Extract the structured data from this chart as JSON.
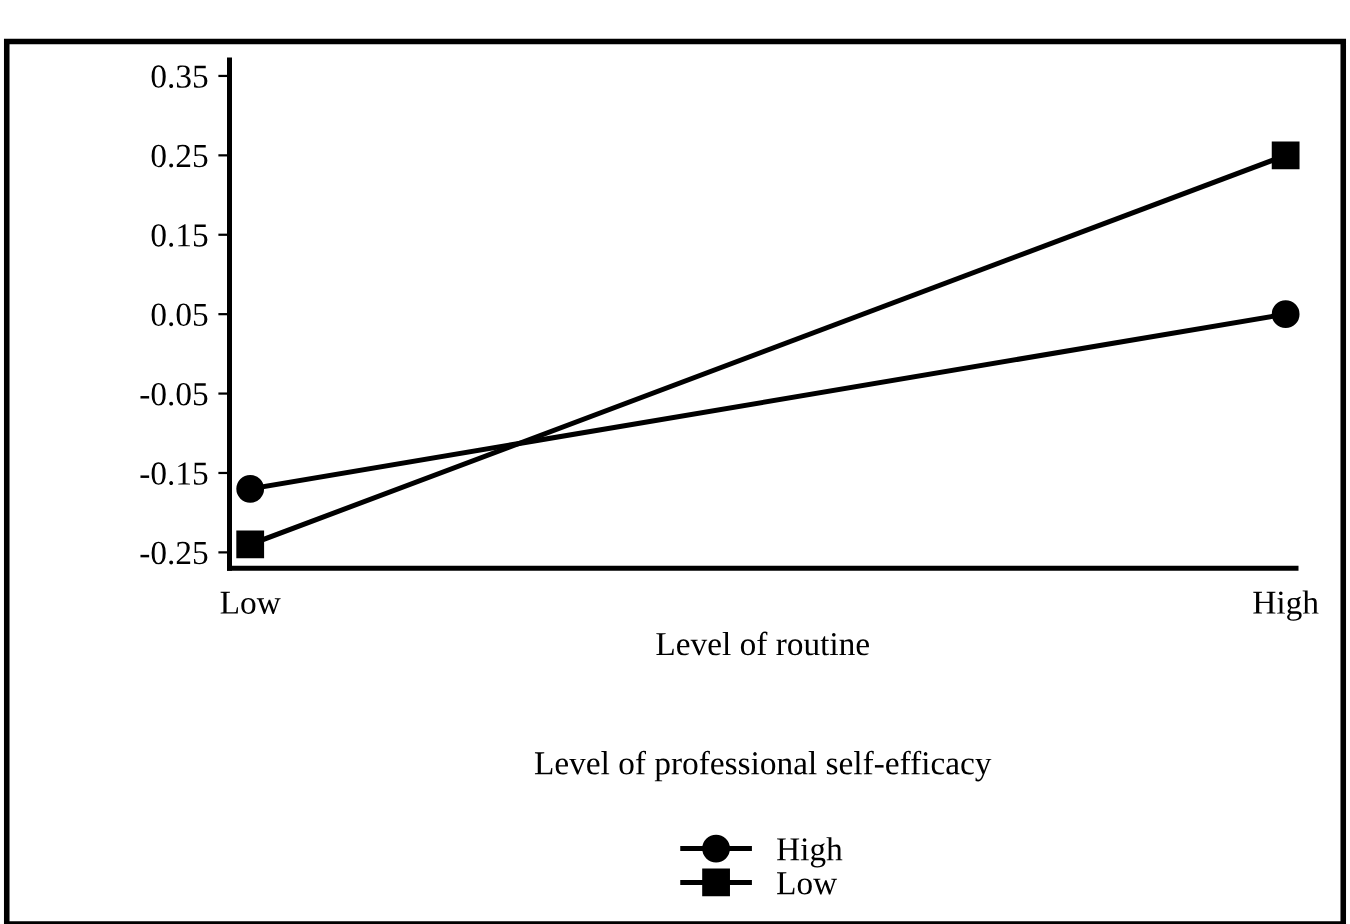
{
  "chart_data": {
    "type": "line",
    "xlabel": "Level of routine",
    "legend_title": "Level of professional self-efficacy",
    "categories": [
      "Low",
      "High"
    ],
    "series": [
      {
        "name": "High",
        "color": "#000000",
        "values": [
          -0.17,
          0.05
        ],
        "marker": "circle"
      },
      {
        "name": "Low",
        "color": "#000000",
        "values": [
          -0.24,
          0.25
        ],
        "marker": "square"
      }
    ],
    "ylim": [
      -0.27,
      0.37
    ],
    "yticks": [
      -0.25,
      -0.15,
      -0.05,
      0.05,
      0.15,
      0.25,
      0.35
    ],
    "grid": false,
    "legend": "bottom",
    "line_style": "solid"
  }
}
